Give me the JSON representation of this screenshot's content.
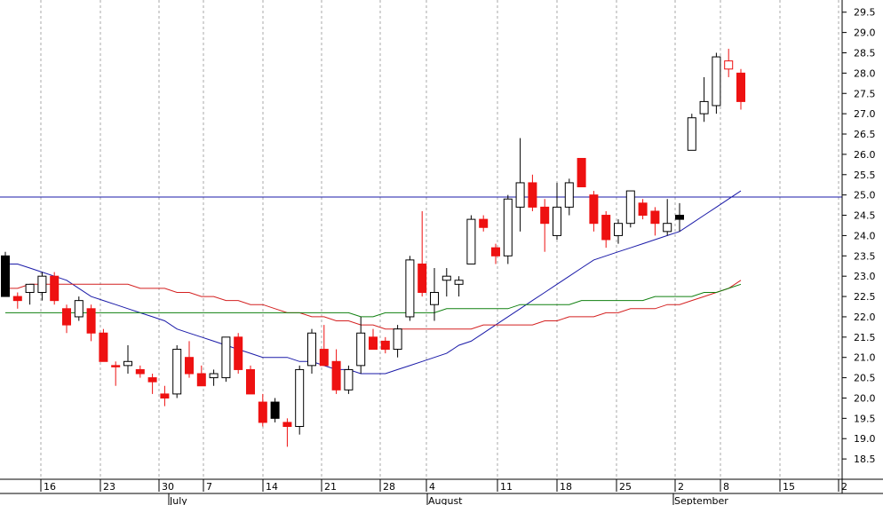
{
  "chart_data": {
    "type": "candlestick",
    "title": "",
    "ylim": [
      18.0,
      29.8
    ],
    "yticks": [
      18.5,
      19.0,
      19.5,
      20.0,
      20.5,
      21.0,
      21.5,
      22.0,
      22.5,
      23.0,
      23.5,
      24.0,
      24.5,
      25.0,
      25.5,
      26.0,
      26.5,
      27.0,
      27.5,
      28.0,
      28.5,
      29.0,
      29.5
    ],
    "ytick_labels": [
      "18.5",
      "19.0",
      "19.5",
      "20.0",
      "20.5",
      "21.0",
      "21.5",
      "22.0",
      "22.5",
      "23.0",
      "23.5",
      "24.0",
      "24.5",
      "25.0",
      "25.5",
      "26.0",
      "26.5",
      "27.0",
      "27.5",
      "28.0",
      "28.5",
      "29.0",
      "29.5"
    ],
    "x_day_labels": [
      "16",
      "23",
      "30",
      "7",
      "14",
      "21",
      "28",
      "4",
      "11",
      "18",
      "25",
      "2",
      "8",
      "15",
      "2"
    ],
    "x_month_labels": [
      "July",
      "August",
      "September"
    ],
    "grid": true,
    "horizontal_line": {
      "value": 24.95,
      "color": "#1a1aa8"
    },
    "colors": {
      "up": "#ffffff",
      "down": "#ee1111",
      "outline": "#000000",
      "axis": "#000000",
      "grid": "#aaaaaa"
    },
    "candles": [
      {
        "o": 23.5,
        "h": 23.6,
        "l": 22.5,
        "c": 22.5,
        "color": "black"
      },
      {
        "o": 22.5,
        "h": 22.6,
        "l": 22.2,
        "c": 22.4,
        "color": "red"
      },
      {
        "o": 22.6,
        "h": 22.8,
        "l": 22.3,
        "c": 22.8,
        "color": "white"
      },
      {
        "o": 22.6,
        "h": 23.1,
        "l": 22.4,
        "c": 23.0,
        "color": "white"
      },
      {
        "o": 23.0,
        "h": 23.1,
        "l": 22.3,
        "c": 22.4,
        "color": "red"
      },
      {
        "o": 22.2,
        "h": 22.3,
        "l": 21.6,
        "c": 21.8,
        "color": "red"
      },
      {
        "o": 22.0,
        "h": 22.5,
        "l": 21.9,
        "c": 22.4,
        "color": "white"
      },
      {
        "o": 22.2,
        "h": 22.3,
        "l": 21.4,
        "c": 21.6,
        "color": "red"
      },
      {
        "o": 21.6,
        "h": 21.7,
        "l": 20.9,
        "c": 20.9,
        "color": "red"
      },
      {
        "o": 20.8,
        "h": 20.9,
        "l": 20.3,
        "c": 20.8,
        "color": "red"
      },
      {
        "o": 20.8,
        "h": 21.3,
        "l": 20.6,
        "c": 20.9,
        "color": "white"
      },
      {
        "o": 20.7,
        "h": 20.8,
        "l": 20.5,
        "c": 20.6,
        "color": "red"
      },
      {
        "o": 20.5,
        "h": 20.6,
        "l": 20.1,
        "c": 20.4,
        "color": "red"
      },
      {
        "o": 20.1,
        "h": 20.3,
        "l": 19.8,
        "c": 20.0,
        "color": "red"
      },
      {
        "o": 20.1,
        "h": 21.3,
        "l": 20.0,
        "c": 21.2,
        "color": "white"
      },
      {
        "o": 21.0,
        "h": 21.4,
        "l": 20.5,
        "c": 20.6,
        "color": "red"
      },
      {
        "o": 20.6,
        "h": 20.8,
        "l": 20.3,
        "c": 20.3,
        "color": "red"
      },
      {
        "o": 20.5,
        "h": 20.7,
        "l": 20.3,
        "c": 20.6,
        "color": "white"
      },
      {
        "o": 20.5,
        "h": 21.5,
        "l": 20.4,
        "c": 21.5,
        "color": "white"
      },
      {
        "o": 21.5,
        "h": 21.6,
        "l": 20.6,
        "c": 20.7,
        "color": "red"
      },
      {
        "o": 20.7,
        "h": 20.8,
        "l": 20.1,
        "c": 20.1,
        "color": "red"
      },
      {
        "o": 19.9,
        "h": 20.1,
        "l": 19.3,
        "c": 19.4,
        "color": "red"
      },
      {
        "o": 19.9,
        "h": 20.0,
        "l": 19.4,
        "c": 19.5,
        "color": "black"
      },
      {
        "o": 19.4,
        "h": 19.5,
        "l": 18.8,
        "c": 19.3,
        "color": "red"
      },
      {
        "o": 19.3,
        "h": 20.8,
        "l": 19.1,
        "c": 20.7,
        "color": "white"
      },
      {
        "o": 20.8,
        "h": 21.7,
        "l": 20.6,
        "c": 21.6,
        "color": "white"
      },
      {
        "o": 21.2,
        "h": 21.8,
        "l": 20.8,
        "c": 20.8,
        "color": "red"
      },
      {
        "o": 20.9,
        "h": 21.2,
        "l": 20.1,
        "c": 20.2,
        "color": "red"
      },
      {
        "o": 20.2,
        "h": 20.8,
        "l": 20.1,
        "c": 20.7,
        "color": "white"
      },
      {
        "o": 20.8,
        "h": 22.0,
        "l": 20.6,
        "c": 21.6,
        "color": "white"
      },
      {
        "o": 21.5,
        "h": 21.7,
        "l": 21.2,
        "c": 21.2,
        "color": "red"
      },
      {
        "o": 21.4,
        "h": 21.5,
        "l": 21.1,
        "c": 21.2,
        "color": "red"
      },
      {
        "o": 21.2,
        "h": 21.8,
        "l": 21.0,
        "c": 21.7,
        "color": "white"
      },
      {
        "o": 22.0,
        "h": 23.5,
        "l": 21.9,
        "c": 23.4,
        "color": "white"
      },
      {
        "o": 23.3,
        "h": 24.6,
        "l": 22.5,
        "c": 22.6,
        "color": "red"
      },
      {
        "o": 22.3,
        "h": 23.2,
        "l": 21.9,
        "c": 22.6,
        "color": "white"
      },
      {
        "o": 22.9,
        "h": 23.2,
        "l": 22.5,
        "c": 23.0,
        "color": "white"
      },
      {
        "o": 22.8,
        "h": 23.0,
        "l": 22.5,
        "c": 22.9,
        "color": "white"
      },
      {
        "o": 23.3,
        "h": 24.5,
        "l": 23.3,
        "c": 24.4,
        "color": "white"
      },
      {
        "o": 24.4,
        "h": 24.5,
        "l": 24.1,
        "c": 24.2,
        "color": "red"
      },
      {
        "o": 23.7,
        "h": 23.8,
        "l": 23.3,
        "c": 23.5,
        "color": "red"
      },
      {
        "o": 23.5,
        "h": 25.0,
        "l": 23.3,
        "c": 24.9,
        "color": "white"
      },
      {
        "o": 24.7,
        "h": 26.4,
        "l": 24.1,
        "c": 25.3,
        "color": "white"
      },
      {
        "o": 25.3,
        "h": 25.5,
        "l": 24.6,
        "c": 24.7,
        "color": "red"
      },
      {
        "o": 24.7,
        "h": 24.9,
        "l": 23.6,
        "c": 24.3,
        "color": "red"
      },
      {
        "o": 24.0,
        "h": 25.3,
        "l": 23.9,
        "c": 24.7,
        "color": "white"
      },
      {
        "o": 24.7,
        "h": 25.4,
        "l": 24.5,
        "c": 25.3,
        "color": "white"
      },
      {
        "o": 25.9,
        "h": 25.9,
        "l": 25.2,
        "c": 25.2,
        "color": "red"
      },
      {
        "o": 25.0,
        "h": 25.1,
        "l": 24.1,
        "c": 24.3,
        "color": "red"
      },
      {
        "o": 24.5,
        "h": 24.6,
        "l": 23.7,
        "c": 23.9,
        "color": "red"
      },
      {
        "o": 24.0,
        "h": 24.4,
        "l": 23.8,
        "c": 24.3,
        "color": "white"
      },
      {
        "o": 24.3,
        "h": 25.1,
        "l": 24.2,
        "c": 25.1,
        "color": "white"
      },
      {
        "o": 24.8,
        "h": 24.9,
        "l": 24.4,
        "c": 24.5,
        "color": "red"
      },
      {
        "o": 24.6,
        "h": 24.7,
        "l": 24.0,
        "c": 24.3,
        "color": "red"
      },
      {
        "o": 24.1,
        "h": 24.9,
        "l": 24.0,
        "c": 24.3,
        "color": "white"
      },
      {
        "o": 24.5,
        "h": 24.8,
        "l": 24.1,
        "c": 24.4,
        "color": "black"
      },
      {
        "o": 26.1,
        "h": 27.0,
        "l": 26.1,
        "c": 26.9,
        "color": "white"
      },
      {
        "o": 27.0,
        "h": 27.9,
        "l": 26.8,
        "c": 27.3,
        "color": "white"
      },
      {
        "o": 27.2,
        "h": 28.5,
        "l": 27.0,
        "c": 28.4,
        "color": "white"
      },
      {
        "o": 28.3,
        "h": 28.6,
        "l": 27.9,
        "c": 28.1,
        "color": "hollow-red"
      },
      {
        "o": 28.0,
        "h": 28.1,
        "l": 27.1,
        "c": 27.3,
        "color": "red"
      }
    ],
    "series": [
      {
        "color": "#1a1aa8",
        "values": [
          23.3,
          23.3,
          23.2,
          23.1,
          23.0,
          22.9,
          22.7,
          22.5,
          22.4,
          22.3,
          22.2,
          22.1,
          22.0,
          21.9,
          21.7,
          21.6,
          21.5,
          21.4,
          21.3,
          21.2,
          21.1,
          21.0,
          21.0,
          21.0,
          20.9,
          20.9,
          20.8,
          20.7,
          20.7,
          20.6,
          20.6,
          20.6,
          20.7,
          20.8,
          20.9,
          21.0,
          21.1,
          21.3,
          21.4,
          21.6,
          21.8,
          22.0,
          22.2,
          22.4,
          22.6,
          22.8,
          23.0,
          23.2,
          23.4,
          23.5,
          23.6,
          23.7,
          23.8,
          23.9,
          24.0,
          24.1,
          24.3,
          24.5,
          24.7,
          24.9,
          25.1
        ]
      },
      {
        "color": "#d42020",
        "values": [
          22.7,
          22.7,
          22.8,
          22.8,
          22.8,
          22.8,
          22.8,
          22.8,
          22.8,
          22.8,
          22.8,
          22.7,
          22.7,
          22.7,
          22.6,
          22.6,
          22.5,
          22.5,
          22.4,
          22.4,
          22.3,
          22.3,
          22.2,
          22.1,
          22.1,
          22.0,
          22.0,
          21.9,
          21.9,
          21.8,
          21.8,
          21.7,
          21.7,
          21.7,
          21.7,
          21.7,
          21.7,
          21.7,
          21.7,
          21.8,
          21.8,
          21.8,
          21.8,
          21.8,
          21.9,
          21.9,
          22.0,
          22.0,
          22.0,
          22.1,
          22.1,
          22.2,
          22.2,
          22.2,
          22.3,
          22.3,
          22.4,
          22.5,
          22.6,
          22.7,
          22.9
        ]
      },
      {
        "color": "#108010",
        "values": [
          22.1,
          22.1,
          22.1,
          22.1,
          22.1,
          22.1,
          22.1,
          22.1,
          22.1,
          22.1,
          22.1,
          22.1,
          22.1,
          22.1,
          22.1,
          22.1,
          22.1,
          22.1,
          22.1,
          22.1,
          22.1,
          22.1,
          22.1,
          22.1,
          22.1,
          22.1,
          22.1,
          22.1,
          22.1,
          22.0,
          22.0,
          22.1,
          22.1,
          22.1,
          22.1,
          22.1,
          22.2,
          22.2,
          22.2,
          22.2,
          22.2,
          22.2,
          22.3,
          22.3,
          22.3,
          22.3,
          22.3,
          22.4,
          22.4,
          22.4,
          22.4,
          22.4,
          22.4,
          22.5,
          22.5,
          22.5,
          22.5,
          22.6,
          22.6,
          22.7,
          22.8
        ]
      }
    ]
  }
}
